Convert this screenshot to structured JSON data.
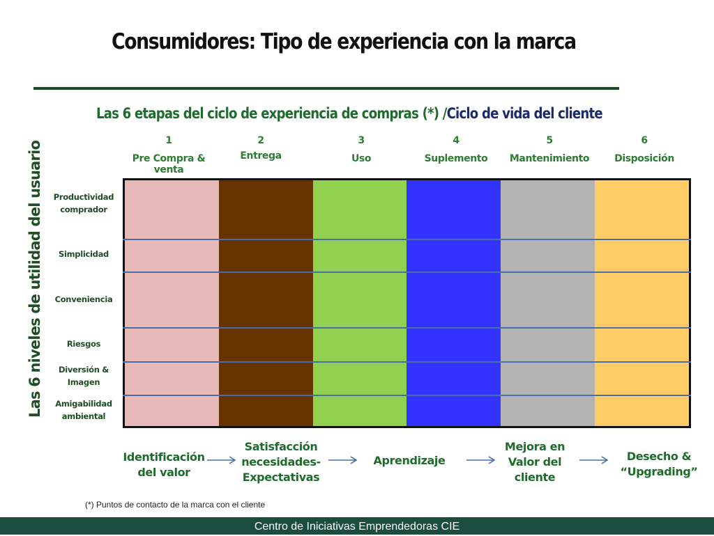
{
  "title": "Consumidores: Tipo de experiencia con la marca",
  "subtitle": {
    "part1": "Las 6 etapas del ciclo de experiencia de compras (*) /",
    "part2": "Ciclo de vida del cliente"
  },
  "stages": [
    {
      "number": "1",
      "label": "Pre Compra & venta",
      "color": "#e6b8b8"
    },
    {
      "number": "2",
      "label": "Entrega",
      "color": "#663300"
    },
    {
      "number": "3",
      "label": "Uso",
      "color": "#92d050"
    },
    {
      "number": "4",
      "label": "Suplemento",
      "color": "#3333ff"
    },
    {
      "number": "5",
      "label": "Mantenimiento",
      "color": "#b3b3b3"
    },
    {
      "number": "6",
      "label": "Disposición",
      "color": "#ffcc66"
    }
  ],
  "rows_title": "Las 6 niveles de utilidad del usuario",
  "rows": [
    {
      "line1": "Productividad",
      "line2": "comprador"
    },
    {
      "line1": "Simplicidad",
      "line2": ""
    },
    {
      "line1": "Conveniencia",
      "line2": ""
    },
    {
      "line1": "Riesgos",
      "line2": ""
    },
    {
      "line1": "Diversión &",
      "line2": "Imagen"
    },
    {
      "line1": "Amigabilidad",
      "line2": "ambiental"
    }
  ],
  "outcomes": [
    {
      "line1": "Identificación",
      "line2": "del valor",
      "line3": ""
    },
    {
      "line1": "Satisfacción",
      "line2": "necesidades-",
      "line3": "Expectativas"
    },
    {
      "line1": "Aprendizaje",
      "line2": "",
      "line3": ""
    },
    {
      "line1": "Mejora en",
      "line2": "Valor del",
      "line3": "cliente"
    },
    {
      "line1": "Desecho &",
      "line2": "“Upgrading”",
      "line3": ""
    }
  ],
  "footnote": "(*) Puntos de contacto de la marca  con el cliente",
  "footer": "Centro de Iniciativas Emprendedoras CIE"
}
